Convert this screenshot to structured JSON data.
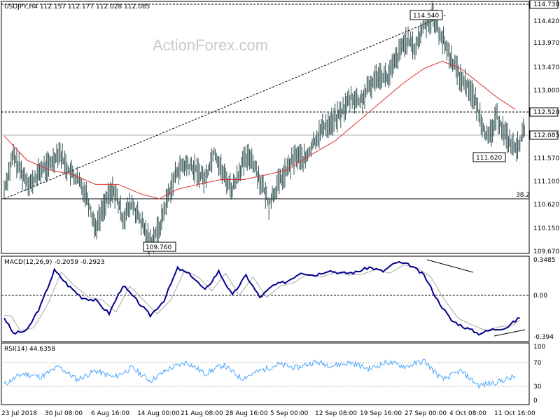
{
  "watermark": "ActionForex.com",
  "main": {
    "title": "USDJPY,H4  112.157 112.177 112.028 112.085",
    "yticks": [
      "114.730",
      "114.420",
      "113.970",
      "113.470",
      "113.000",
      "112.520",
      "112.085",
      "111.570",
      "111.100",
      "110.620",
      "110.150",
      "109.670"
    ],
    "levels": {
      "upper": "114.730",
      "resistance": "112.520",
      "current": "112.085",
      "fib": "110.720",
      "fib_label": "38.2"
    },
    "trendline": {
      "from": "109.760",
      "to": "114.540"
    },
    "callouts": {
      "high": "114.540",
      "low": "109.760",
      "recent_low": "111.620"
    },
    "candle_color": "#2f4f4f",
    "ma_color": "#e03030"
  },
  "macd": {
    "title": "MACD(12,26,9) -0.2059 -0.2923",
    "yticks": [
      "0.3485",
      "0.00",
      "-0.394"
    ],
    "line_color": "#00008b",
    "signal_color": "#a9a9a9"
  },
  "rsi": {
    "title": "RSI(14) 44.6358",
    "yticks": [
      "100",
      "70",
      "30",
      "0"
    ],
    "line_color": "#4da6ff"
  },
  "xticks": [
    "23 Jul 2018",
    "30 Jul 08:00",
    "6 Aug 16:00",
    "14 Aug 00:00",
    "21 Aug 08:00",
    "28 Aug 16:00",
    "5 Sep 00:00",
    "12 Sep 08:00",
    "19 Sep 16:00",
    "27 Sep 00:00",
    "4 Oct 08:00",
    "11 Oct 16:00"
  ],
  "chart_data": {
    "type": "line",
    "series_price_anchors": [
      [
        0,
        110.9
      ],
      [
        8,
        111.6
      ],
      [
        16,
        111.2
      ],
      [
        24,
        111.0
      ],
      [
        32,
        111.3
      ],
      [
        40,
        111.4
      ],
      [
        48,
        111.7
      ],
      [
        56,
        111.3
      ],
      [
        64,
        111.1
      ],
      [
        72,
        110.8
      ],
      [
        80,
        110.1
      ],
      [
        88,
        110.6
      ],
      [
        96,
        110.9
      ],
      [
        104,
        110.3
      ],
      [
        112,
        110.6
      ],
      [
        120,
        110.2
      ],
      [
        128,
        109.8
      ],
      [
        136,
        110.1
      ],
      [
        144,
        110.8
      ],
      [
        152,
        111.3
      ],
      [
        160,
        111.4
      ],
      [
        168,
        111.3
      ],
      [
        176,
        111.1
      ],
      [
        184,
        111.7
      ],
      [
        192,
        111.2
      ],
      [
        200,
        110.9
      ],
      [
        208,
        111.4
      ],
      [
        216,
        111.6
      ],
      [
        224,
        111.1
      ],
      [
        232,
        110.6
      ],
      [
        240,
        111.0
      ],
      [
        248,
        111.3
      ],
      [
        256,
        111.6
      ],
      [
        264,
        111.5
      ],
      [
        272,
        111.9
      ],
      [
        280,
        112.2
      ],
      [
        288,
        112.3
      ],
      [
        296,
        112.5
      ],
      [
        304,
        112.8
      ],
      [
        312,
        112.7
      ],
      [
        320,
        113.0
      ],
      [
        328,
        113.3
      ],
      [
        336,
        113.2
      ],
      [
        344,
        113.6
      ],
      [
        352,
        114.0
      ],
      [
        360,
        113.8
      ],
      [
        368,
        114.3
      ],
      [
        376,
        114.5
      ],
      [
        384,
        114.0
      ],
      [
        392,
        113.6
      ],
      [
        400,
        113.2
      ],
      [
        408,
        113.0
      ],
      [
        416,
        112.5
      ],
      [
        424,
        111.9
      ],
      [
        432,
        112.4
      ],
      [
        440,
        112.0
      ],
      [
        448,
        111.7
      ],
      [
        456,
        112.1
      ]
    ],
    "ma_anchors": [
      [
        0,
        112.0
      ],
      [
        20,
        111.5
      ],
      [
        40,
        111.3
      ],
      [
        60,
        111.2
      ],
      [
        80,
        111.0
      ],
      [
        100,
        111.0
      ],
      [
        120,
        110.8
      ],
      [
        136,
        110.7
      ],
      [
        152,
        110.9
      ],
      [
        170,
        111.0
      ],
      [
        190,
        111.1
      ],
      [
        210,
        111.1
      ],
      [
        230,
        111.2
      ],
      [
        248,
        111.3
      ],
      [
        268,
        111.6
      ],
      [
        290,
        111.9
      ],
      [
        310,
        112.3
      ],
      [
        330,
        112.7
      ],
      [
        350,
        113.1
      ],
      [
        368,
        113.4
      ],
      [
        384,
        113.55
      ],
      [
        400,
        113.4
      ],
      [
        416,
        113.1
      ],
      [
        432,
        112.8
      ],
      [
        448,
        112.55
      ]
    ],
    "macd_anchors": [
      [
        0,
        -0.22
      ],
      [
        8,
        -0.38
      ],
      [
        20,
        -0.35
      ],
      [
        32,
        -0.1
      ],
      [
        44,
        0.25
      ],
      [
        56,
        0.1
      ],
      [
        68,
        -0.02
      ],
      [
        80,
        -0.05
      ],
      [
        92,
        -0.18
      ],
      [
        104,
        0.1
      ],
      [
        116,
        -0.05
      ],
      [
        128,
        -0.2
      ],
      [
        140,
        -0.05
      ],
      [
        152,
        0.27
      ],
      [
        164,
        0.2
      ],
      [
        176,
        0.05
      ],
      [
        188,
        0.24
      ],
      [
        200,
        0.0
      ],
      [
        212,
        0.2
      ],
      [
        224,
        -0.02
      ],
      [
        236,
        0.1
      ],
      [
        248,
        0.14
      ],
      [
        260,
        0.23
      ],
      [
        272,
        0.2
      ],
      [
        284,
        0.25
      ],
      [
        296,
        0.22
      ],
      [
        308,
        0.23
      ],
      [
        320,
        0.28
      ],
      [
        332,
        0.24
      ],
      [
        344,
        0.33
      ],
      [
        356,
        0.3
      ],
      [
        368,
        0.2
      ],
      [
        380,
        -0.05
      ],
      [
        392,
        -0.25
      ],
      [
        404,
        -0.32
      ],
      [
        416,
        -0.38
      ],
      [
        428,
        -0.34
      ],
      [
        440,
        -0.32
      ],
      [
        452,
        -0.22
      ]
    ],
    "rsi_anchors": [
      [
        0,
        32
      ],
      [
        16,
        50
      ],
      [
        32,
        45
      ],
      [
        48,
        62
      ],
      [
        64,
        40
      ],
      [
        80,
        55
      ],
      [
        96,
        44
      ],
      [
        112,
        60
      ],
      [
        128,
        38
      ],
      [
        144,
        58
      ],
      [
        160,
        70
      ],
      [
        176,
        50
      ],
      [
        192,
        65
      ],
      [
        208,
        42
      ],
      [
        224,
        55
      ],
      [
        240,
        66
      ],
      [
        256,
        60
      ],
      [
        272,
        70
      ],
      [
        288,
        64
      ],
      [
        304,
        69
      ],
      [
        320,
        58
      ],
      [
        336,
        70
      ],
      [
        352,
        62
      ],
      [
        368,
        72
      ],
      [
        384,
        40
      ],
      [
        400,
        55
      ],
      [
        416,
        30
      ],
      [
        432,
        36
      ],
      [
        448,
        45
      ]
    ]
  }
}
